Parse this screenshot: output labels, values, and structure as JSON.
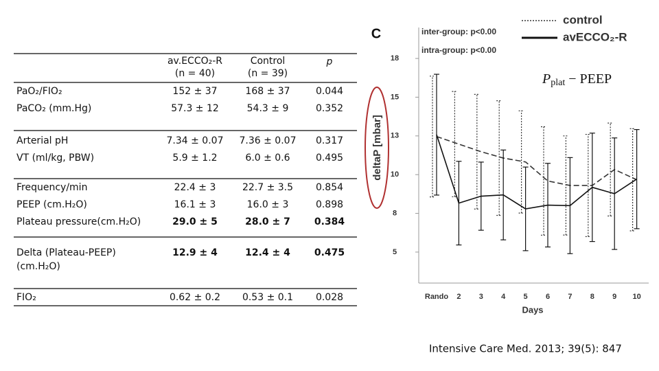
{
  "table": {
    "columns": [
      [
        "av.ECCO₂-R",
        "(n = 40)"
      ],
      [
        "Control",
        "(n = 39)"
      ],
      [
        "p"
      ]
    ],
    "groups": [
      [
        [
          "PaO₂/FIO₂",
          "152 ± 37",
          "168 ± 37",
          "0.044"
        ],
        [
          "PaCO₂ (mm.Hg)",
          "57.3 ± 12",
          "54.3 ± 9",
          "0.352"
        ]
      ],
      [
        [
          "Arterial pH",
          "7.34 ± 0.07",
          "7.36 ± 0.07",
          "0.317"
        ],
        [
          "VT (ml/kg, PBW)",
          "5.9 ± 1.2",
          "6.0 ± 0.6",
          "0.495"
        ]
      ],
      [
        [
          "Frequency/min",
          "22.4 ± 3",
          "22.7 ± 3.5",
          "0.854"
        ],
        [
          "PEEP (cm.H₂O)",
          "16.1 ± 3",
          "16.0 ± 3",
          "0.898"
        ],
        [
          "Plateau pressure(cm.H₂O)",
          "29.0 ± 5",
          "28.0 ± 7",
          "0.384"
        ]
      ],
      [
        [
          "Delta (Plateau-PEEP) (cm.H₂O)",
          "12.9 ± 4",
          "12.4 ± 4",
          "0.475"
        ]
      ],
      [
        [
          "FIO₂",
          "0.62 ± 0.2",
          "0.53 ± 0.1",
          "0.028"
        ]
      ]
    ]
  },
  "chart_data": {
    "type": "line",
    "panel": "C",
    "ylabel": "deltaP [mbar]",
    "xlabel": "Days",
    "annotations": [
      "inter-group: p<0.00",
      "intra-group: p<0.00"
    ],
    "formula": {
      "symbol": "P",
      "subscript": "plat",
      "rest": " − PEEP"
    },
    "categories": [
      "Rando",
      "2",
      "3",
      "4",
      "5",
      "6",
      "7",
      "8",
      "9",
      "10"
    ],
    "ylim": [
      3,
      19.5
    ],
    "yticks": [
      {
        "value": 5,
        "label": "5"
      },
      {
        "value": 7.5,
        "label": "8"
      },
      {
        "value": 10,
        "label": "10"
      },
      {
        "value": 12.5,
        "label": "13"
      },
      {
        "value": 15,
        "label": "15"
      },
      {
        "value": 17.5,
        "label": "18"
      }
    ],
    "series": [
      {
        "name": "control",
        "color": "#333333",
        "dash": true,
        "values": [
          12.46,
          11.97,
          11.48,
          11.07,
          10.82,
          9.59,
          9.3,
          9.3,
          10.33,
          9.67
        ],
        "errors": [
          3.9,
          3.4,
          3.7,
          3.7,
          3.3,
          3.5,
          3.2,
          3.3,
          3.0,
          3.3
        ]
      },
      {
        "name": "avECCO₂-R",
        "color": "#111111",
        "dash": false,
        "values": [
          12.58,
          8.16,
          8.61,
          8.69,
          7.79,
          8.03,
          8.0,
          9.18,
          8.77,
          9.71
        ],
        "errors": [
          3.9,
          2.7,
          2.2,
          2.9,
          2.7,
          2.7,
          3.1,
          3.5,
          3.6,
          3.2
        ]
      }
    ]
  },
  "source": "Intensive Care Med. 2013; 39(5): 847"
}
